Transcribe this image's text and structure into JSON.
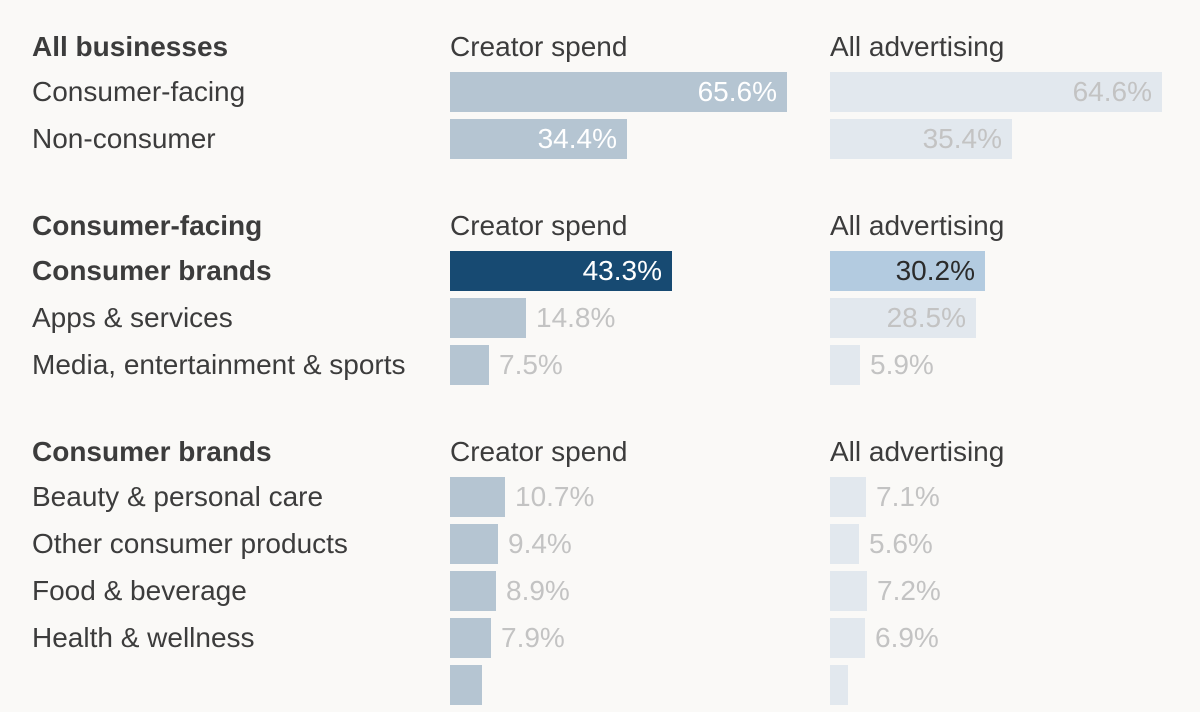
{
  "colors": {
    "creator_bar": "#b5c5d2",
    "advertising_bar": "#e2e8ee",
    "creator_highlight": "#174a72",
    "advertising_highlight": "#b3cbe0",
    "label_muted": "#c3c3c3",
    "label_inside": "#ffffff",
    "label_dark": "#2b2b2b"
  },
  "chart_data": {
    "type": "bar",
    "orientation": "horizontal",
    "unit": "%",
    "max_value": 65.6,
    "columns": [
      "Creator spend",
      "All advertising"
    ],
    "groups": [
      {
        "header": "All businesses",
        "column_headers": [
          "Creator spend",
          "All advertising"
        ],
        "rows": [
          {
            "label": "Consumer-facing",
            "creator": 65.6,
            "creator_text": "65.6%",
            "advertising": 64.6,
            "advertising_text": "64.6%",
            "bold": false,
            "highlight": false
          },
          {
            "label": "Non-consumer",
            "creator": 34.4,
            "creator_text": "34.4%",
            "advertising": 35.4,
            "advertising_text": "35.4%",
            "bold": false,
            "highlight": false
          }
        ]
      },
      {
        "header": "Consumer-facing",
        "column_headers": [
          "Creator spend",
          "All advertising"
        ],
        "rows": [
          {
            "label": "Consumer brands",
            "creator": 43.3,
            "creator_text": "43.3%",
            "advertising": 30.2,
            "advertising_text": "30.2%",
            "bold": true,
            "highlight": true
          },
          {
            "label": "Apps & services",
            "creator": 14.8,
            "creator_text": "14.8%",
            "advertising": 28.5,
            "advertising_text": "28.5%",
            "bold": false,
            "highlight": false
          },
          {
            "label": "Media, entertainment & sports",
            "creator": 7.5,
            "creator_text": "7.5%",
            "advertising": 5.9,
            "advertising_text": "5.9%",
            "bold": false,
            "highlight": false
          }
        ]
      },
      {
        "header": "Consumer brands",
        "column_headers": [
          "Creator spend",
          "All advertising"
        ],
        "rows": [
          {
            "label": "Beauty & personal care",
            "creator": 10.7,
            "creator_text": "10.7%",
            "advertising": 7.1,
            "advertising_text": "7.1%",
            "bold": false,
            "highlight": false
          },
          {
            "label": "Other consumer products",
            "creator": 9.4,
            "creator_text": "9.4%",
            "advertising": 5.6,
            "advertising_text": "5.6%",
            "bold": false,
            "highlight": false
          },
          {
            "label": "Food & beverage",
            "creator": 8.9,
            "creator_text": "8.9%",
            "advertising": 7.2,
            "advertising_text": "7.2%",
            "bold": false,
            "highlight": false
          },
          {
            "label": "Health & wellness",
            "creator": 7.9,
            "creator_text": "7.9%",
            "advertising": 6.9,
            "advertising_text": "6.9%",
            "bold": false,
            "highlight": false
          },
          {
            "label": "",
            "creator": 6.3,
            "creator_text": "",
            "advertising": 3.5,
            "advertising_text": "",
            "bold": false,
            "highlight": false
          }
        ]
      }
    ]
  }
}
